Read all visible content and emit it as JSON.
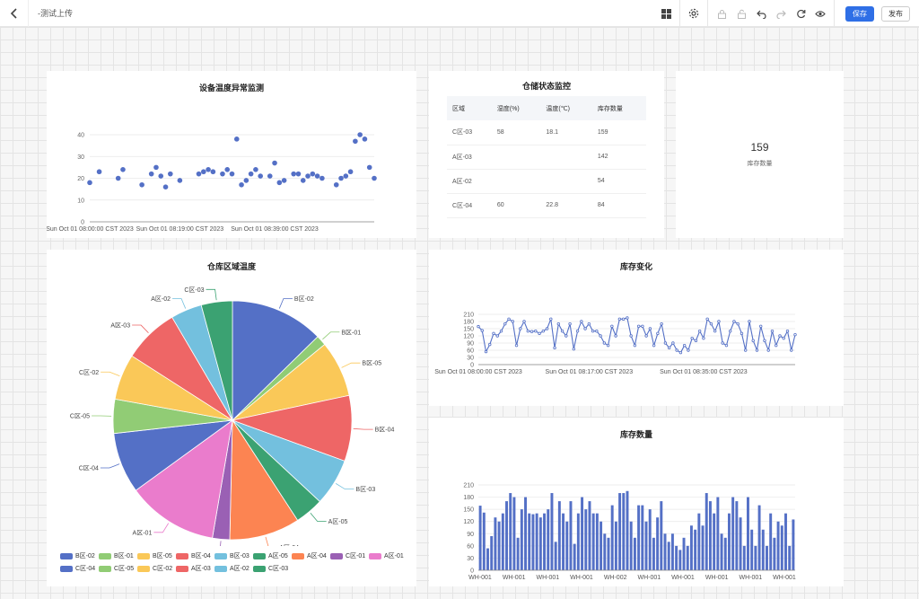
{
  "toolbar": {
    "title": "-测试上传",
    "save_label": "保存",
    "publish_label": "发布"
  },
  "colors": {
    "accent": "#2f6fe6",
    "palette": [
      "#5470c6",
      "#91cc75",
      "#fac858",
      "#ee6666",
      "#73c0de",
      "#3ba272",
      "#fc8452",
      "#9a60b4",
      "#ea7ccc"
    ]
  },
  "panels": {
    "scatter": {
      "title": "设备温度异常监测"
    },
    "table": {
      "title": "仓储状态监控",
      "columns": [
        "区域",
        "湿度(%)",
        "温度(℃)",
        "库存数量"
      ],
      "rows": [
        [
          "C区-03",
          "58",
          "18.1",
          "159"
        ],
        [
          "A区-03",
          "",
          "",
          "142"
        ],
        [
          "A区-02",
          "",
          "",
          "54"
        ],
        [
          "C区-04",
          "60",
          "22.8",
          "84"
        ]
      ]
    },
    "kpi": {
      "value": "159",
      "label": "库存数量"
    },
    "pie": {
      "title": "仓库区域温度"
    },
    "line": {
      "title": "库存变化"
    },
    "bar": {
      "title": "库存数量"
    }
  },
  "chart_data": [
    {
      "type": "scatter",
      "title": "设备温度异常监测",
      "ylim": [
        0,
        40
      ],
      "y_ticks": [
        0,
        10,
        20,
        30,
        40
      ],
      "x_tick_labels": [
        "Sun Oct 01 08:00:00 CST 2023",
        "Sun Oct 01 08:19:00 CST 2023",
        "Sun Oct 01 08:39:00 CST 2023"
      ],
      "x_minutes": [
        0,
        2,
        6,
        7,
        11,
        13,
        14,
        15,
        16,
        17,
        19,
        23,
        24,
        25,
        26,
        28,
        29,
        30,
        31,
        32,
        33,
        34,
        35,
        36,
        38,
        39,
        40,
        41,
        43,
        44,
        45,
        46,
        47,
        48,
        49,
        52,
        53,
        54,
        55,
        56,
        57,
        58,
        59,
        60
      ],
      "values": [
        18,
        23,
        20,
        24,
        17,
        22,
        25,
        21,
        16,
        22,
        19,
        22,
        23,
        24,
        23,
        22,
        24,
        22,
        38,
        17,
        19,
        22,
        24,
        21,
        21,
        27,
        18,
        19,
        22,
        22,
        19,
        21,
        22,
        21,
        20,
        17,
        20,
        21,
        23,
        37,
        40,
        38,
        25,
        20
      ]
    },
    {
      "type": "table",
      "title": "仓储状态监控"
    },
    {
      "type": "pie",
      "title": "仓库区域温度",
      "slices": [
        {
          "name": "B区-02",
          "value": 22.8
        },
        {
          "name": "B区-01",
          "value": 2.5
        },
        {
          "name": "B区-05",
          "value": 13.7
        },
        {
          "name": "B区-04",
          "value": 16.0
        },
        {
          "name": "B区-03",
          "value": 11.5
        },
        {
          "name": "A区-05",
          "value": 7.0
        },
        {
          "name": "A区-04",
          "value": 17.2
        },
        {
          "name": "C区-01",
          "value": 4.2
        },
        {
          "name": "A区-01",
          "value": 22.2
        },
        {
          "name": "C区-04",
          "value": 14.8
        },
        {
          "name": "C区-05",
          "value": 8.3
        },
        {
          "name": "C区-02",
          "value": 11.2
        },
        {
          "name": "A区-03",
          "value": 13.5
        },
        {
          "name": "A区-02",
          "value": 7.6
        },
        {
          "name": "C区-03",
          "value": 7.6
        }
      ],
      "legend_position": "bottom"
    },
    {
      "type": "line",
      "title": "库存变化",
      "ylim": [
        0,
        210
      ],
      "y_ticks": [
        0,
        30,
        60,
        90,
        120,
        150,
        180,
        210
      ],
      "x_tick_labels": [
        "Sun Oct 01 08:00:00 CST 2023",
        "Sun Oct 01 08:17:00 CST 2023",
        "Sun Oct 01 08:35:00 CST 2023"
      ],
      "values": [
        159,
        142,
        54,
        84,
        130,
        120,
        140,
        170,
        190,
        180,
        80,
        150,
        180,
        140,
        138,
        140,
        130,
        140,
        150,
        190,
        70,
        170,
        140,
        120,
        170,
        65,
        140,
        180,
        150,
        170,
        140,
        140,
        120,
        90,
        80,
        160,
        120,
        190,
        190,
        195,
        120,
        80,
        160,
        160,
        120,
        150,
        80,
        130,
        170,
        90,
        70,
        90,
        60,
        50,
        80,
        60,
        110,
        100,
        140,
        110,
        190,
        170,
        140,
        180,
        90,
        80,
        140,
        180,
        170,
        130,
        60,
        180,
        100,
        60,
        160,
        100,
        60,
        140,
        80,
        120,
        110,
        140,
        60,
        125
      ]
    },
    {
      "type": "bar",
      "title": "库存数量",
      "ylim": [
        0,
        210
      ],
      "y_ticks": [
        0,
        30,
        60,
        90,
        120,
        150,
        180,
        210
      ],
      "x_tick_labels": [
        "WH-001",
        "WH-001",
        "WH-001",
        "WH-001",
        "WH-002",
        "WH-001",
        "WH-001",
        "WH-001",
        "WH-001",
        "WH-001"
      ],
      "values": [
        159,
        142,
        54,
        84,
        130,
        120,
        140,
        170,
        190,
        180,
        80,
        150,
        180,
        140,
        138,
        140,
        130,
        140,
        150,
        190,
        70,
        170,
        140,
        120,
        170,
        65,
        140,
        180,
        150,
        170,
        140,
        140,
        120,
        90,
        80,
        160,
        120,
        190,
        190,
        195,
        120,
        80,
        160,
        160,
        120,
        150,
        80,
        130,
        170,
        90,
        70,
        90,
        60,
        50,
        80,
        60,
        110,
        100,
        140,
        110,
        190,
        170,
        140,
        180,
        90,
        80,
        140,
        180,
        170,
        130,
        60,
        180,
        100,
        60,
        160,
        100,
        60,
        140,
        80,
        120,
        110,
        140,
        60,
        125
      ]
    }
  ]
}
